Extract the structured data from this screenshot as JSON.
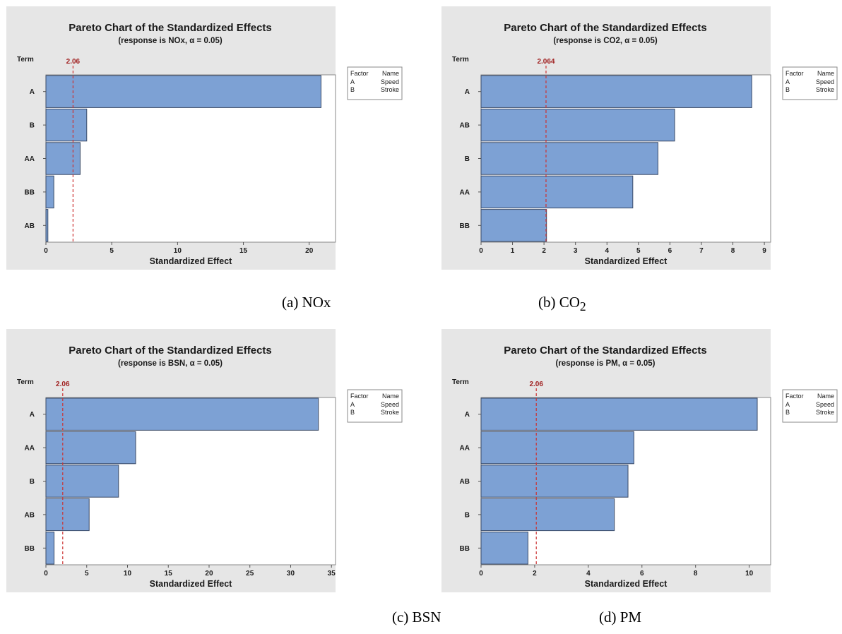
{
  "chart_data": [
    {
      "type": "bar",
      "orientation": "horizontal",
      "title": "Pareto Chart of the Standardized Effects",
      "subtitle": "(response is NOx, α = 0.05)",
      "ylabel": "Term",
      "xlabel": "Standardized Effect",
      "categories": [
        "A",
        "B",
        "AA",
        "BB",
        "AB"
      ],
      "values": [
        20.9,
        3.1,
        2.6,
        0.6,
        0.15
      ],
      "xlim": [
        0,
        22
      ],
      "xticks": [
        "0",
        "5",
        "10",
        "15",
        "20"
      ],
      "reference_line": {
        "value": 2.06,
        "label": "2.06"
      },
      "legend": {
        "headers": [
          "Factor",
          "Name"
        ],
        "rows": [
          [
            "A",
            "Speed"
          ],
          [
            "B",
            "Stroke"
          ]
        ]
      },
      "legend_placement": "right",
      "grid": false,
      "caption": "(a) NOx"
    },
    {
      "type": "bar",
      "orientation": "horizontal",
      "title": "Pareto Chart of the Standardized Effects",
      "subtitle": "(response is CO2, α = 0.05)",
      "ylabel": "Term",
      "xlabel": "Standardized Effect",
      "categories": [
        "A",
        "AB",
        "B",
        "AA",
        "BB"
      ],
      "values": [
        8.6,
        6.15,
        5.62,
        4.82,
        2.08
      ],
      "xlim": [
        0,
        9.2
      ],
      "xticks": [
        "0",
        "1",
        "2",
        "3",
        "4",
        "5",
        "6",
        "7",
        "8",
        "9"
      ],
      "reference_line": {
        "value": 2.064,
        "label": "2.064"
      },
      "legend": {
        "headers": [
          "Factor",
          "Name"
        ],
        "rows": [
          [
            "A",
            "Speed"
          ],
          [
            "B",
            "Stroke"
          ]
        ]
      },
      "legend_placement": "right",
      "grid": false,
      "caption": "(b) CO",
      "caption_subscript": "2"
    },
    {
      "type": "bar",
      "orientation": "horizontal",
      "title": "Pareto Chart of the Standardized Effects",
      "subtitle": "(response is BSN, α = 0.05)",
      "ylabel": "Term",
      "xlabel": "Standardized Effect",
      "categories": [
        "A",
        "AA",
        "B",
        "AB",
        "BB"
      ],
      "values": [
        33.4,
        11.0,
        8.9,
        5.3,
        1.0
      ],
      "xlim": [
        0,
        35.5
      ],
      "xticks": [
        "0",
        "5",
        "10",
        "15",
        "20",
        "25",
        "30",
        "35"
      ],
      "reference_line": {
        "value": 2.06,
        "label": "2.06"
      },
      "legend": {
        "headers": [
          "Factor",
          "Name"
        ],
        "rows": [
          [
            "A",
            "Speed"
          ],
          [
            "B",
            "Stroke"
          ]
        ]
      },
      "legend_placement": "right",
      "grid": false,
      "caption": "(c) BSN"
    },
    {
      "type": "bar",
      "orientation": "horizontal",
      "title": "Pareto Chart of the Standardized Effects",
      "subtitle": "(response is PM, α = 0.05)",
      "ylabel": "Term",
      "xlabel": "Standardized Effect",
      "categories": [
        "A",
        "AA",
        "AB",
        "B",
        "BB"
      ],
      "values": [
        10.3,
        5.7,
        5.48,
        4.97,
        1.75
      ],
      "xlim": [
        0,
        10.8
      ],
      "xticks": [
        "0",
        "2",
        "4",
        "6",
        "8",
        "10"
      ],
      "reference_line": {
        "value": 2.06,
        "label": "2.06"
      },
      "legend": {
        "headers": [
          "Factor",
          "Name"
        ],
        "rows": [
          [
            "A",
            "Speed"
          ],
          [
            "B",
            "Stroke"
          ]
        ]
      },
      "legend_placement": "right",
      "grid": false,
      "caption": "(d) PM"
    }
  ],
  "colors": {
    "panel_background": "#e6e6e6",
    "plot_background": "#ffffff",
    "bar_fill": "#7da1d4",
    "bar_stroke": "#3a4a66",
    "reference_line": "#cc3333",
    "reference_label": "#a02020",
    "text": "#1a1a1a"
  }
}
